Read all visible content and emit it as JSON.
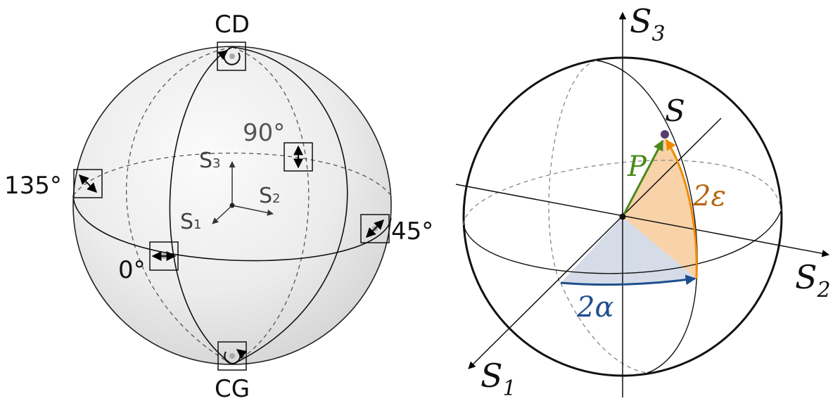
{
  "left_sphere": {
    "labels": {
      "top": "CD",
      "bottom": "CG",
      "deg_0": "0°",
      "deg_45": "45°",
      "deg_90": "90°",
      "deg_135": "135°"
    },
    "inner_axes": {
      "s1": "S",
      "s1_sub": "1",
      "s2": "S",
      "s2_sub": "2",
      "s3": "S",
      "s3_sub": "3"
    }
  },
  "right_sphere": {
    "axes": {
      "s1": "S",
      "s1_sub": "1",
      "s2": "S",
      "s2_sub": "2",
      "s3": "S",
      "s3_sub": "3"
    },
    "point_label": "S",
    "vector_label": "P",
    "alpha_label": "2α",
    "epsilon_label": "2ε"
  },
  "colors": {
    "green": "#4a8a1c",
    "orange": "#f08a00",
    "orange_text": "#b5650e",
    "blue": "#1f4e8c",
    "purple": "#5a3b6e",
    "blue_fill": "#d5dce8",
    "orange_fill": "#f8d2a8"
  }
}
